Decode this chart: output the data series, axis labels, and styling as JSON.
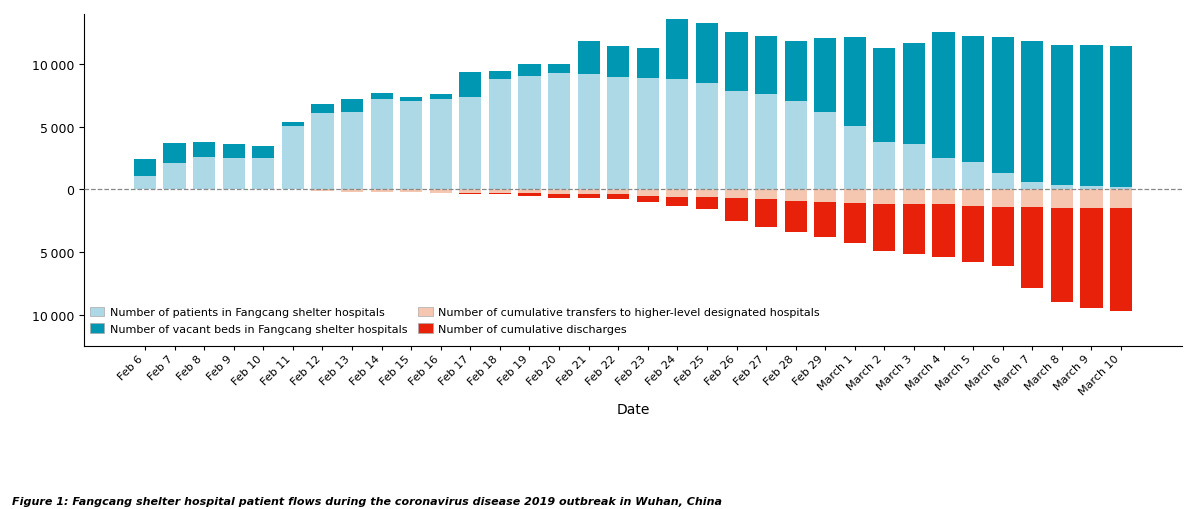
{
  "dates": [
    "Feb 6",
    "Feb 7",
    "Feb 8",
    "Feb 9",
    "Feb 10",
    "Feb 11",
    "Feb 12",
    "Feb 13",
    "Feb 14",
    "Feb 15",
    "Feb 16",
    "Feb 17",
    "Feb 18",
    "Feb 19",
    "Feb 20",
    "Feb 21",
    "Feb 22",
    "Feb 23",
    "Feb 24",
    "Feb 25",
    "Feb 26",
    "Feb 27",
    "Feb 28",
    "Feb 29",
    "March 1",
    "March 2",
    "March 3",
    "March 4",
    "March 5",
    "March 6",
    "March 7",
    "March 8",
    "March 9",
    "March 10"
  ],
  "patients": [
    1100,
    2100,
    2600,
    2500,
    2500,
    5100,
    6100,
    6200,
    7200,
    7100,
    7200,
    7400,
    8800,
    9100,
    9300,
    9200,
    9000,
    8900,
    8800,
    8500,
    7900,
    7600,
    7100,
    6200,
    5100,
    3800,
    3600,
    2500,
    2200,
    1300,
    600,
    350,
    250,
    200
  ],
  "vacant_beds": [
    1300,
    1600,
    1200,
    1100,
    1000,
    300,
    700,
    1000,
    500,
    300,
    400,
    2000,
    650,
    900,
    750,
    2700,
    2500,
    2400,
    4800,
    4800,
    4700,
    4700,
    4800,
    5900,
    7100,
    7500,
    8100,
    10100,
    10100,
    10900,
    11300,
    11200,
    11300,
    11300
  ],
  "transfers": [
    0,
    0,
    0,
    0,
    0,
    0,
    -100,
    -200,
    -200,
    -200,
    -300,
    -300,
    -300,
    -300,
    -400,
    -400,
    -400,
    -500,
    -600,
    -600,
    -700,
    -800,
    -900,
    -1000,
    -1100,
    -1200,
    -1200,
    -1200,
    -1300,
    -1400,
    -1400,
    -1500,
    -1500,
    -1500
  ],
  "discharges": [
    0,
    0,
    0,
    0,
    0,
    0,
    0,
    0,
    0,
    0,
    0,
    -100,
    -100,
    -200,
    -300,
    -300,
    -400,
    -500,
    -700,
    -1000,
    -1800,
    -2200,
    -2500,
    -2800,
    -3200,
    -3700,
    -4000,
    -4200,
    -4500,
    -4700,
    -6500,
    -7500,
    -8000,
    -8200
  ],
  "color_patients": "#add8e6",
  "color_vacant": "#0097b2",
  "color_transfers": "#f5c6b0",
  "color_discharges": "#e8220a",
  "ylim": [
    -12500,
    14000
  ],
  "yticks": [
    -10000,
    -5000,
    0,
    5000,
    10000
  ],
  "xlabel": "Date",
  "legend_labels": [
    "Number of patients in Fangcang shelter hospitals",
    "Number of vacant beds in Fangcang shelter hospitals",
    "Number of cumulative transfers to higher-level designated hospitals",
    "Number of cumulative discharges"
  ],
  "figure_caption": "Figure 1: Fangcang shelter hospital patient flows during the coronavirus disease 2019 outbreak in Wuhan, China"
}
